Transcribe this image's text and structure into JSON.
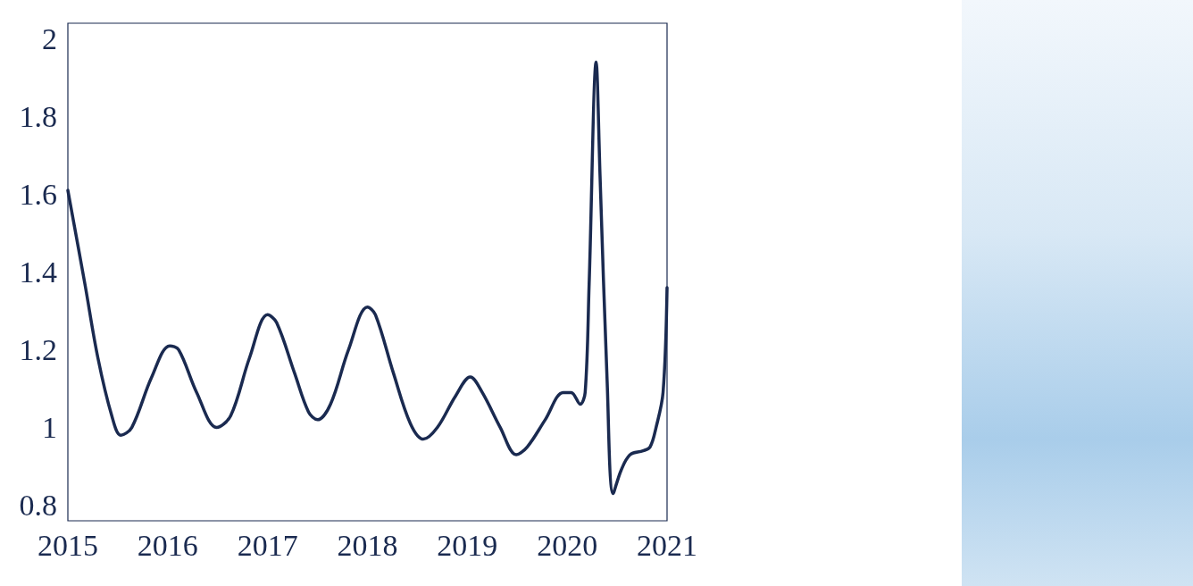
{
  "chart_data": {
    "type": "line",
    "x": [
      2015.0,
      2015.17,
      2015.3,
      2015.44,
      2015.53,
      2015.64,
      2015.84,
      2016.02,
      2016.11,
      2016.29,
      2016.49,
      2016.63,
      2016.82,
      2017.0,
      2017.09,
      2017.27,
      2017.41,
      2017.5,
      2017.63,
      2017.81,
      2018.0,
      2018.08,
      2018.26,
      2018.43,
      2018.56,
      2018.7,
      2018.88,
      2019.03,
      2019.15,
      2019.33,
      2019.49,
      2019.6,
      2019.78,
      2019.96,
      2020.04,
      2020.13,
      2020.18,
      2020.22,
      2020.29,
      2020.33,
      2020.4,
      2020.46,
      2020.54,
      2020.63,
      2020.76,
      2020.83,
      2020.89,
      2020.96,
      2021.0
    ],
    "series": [
      {
        "color": "#1a2a50",
        "values": [
          1.61,
          1.37,
          1.18,
          1.03,
          0.98,
          1.0,
          1.13,
          1.21,
          1.2,
          1.09,
          1.0,
          1.03,
          1.18,
          1.29,
          1.27,
          1.14,
          1.04,
          1.02,
          1.06,
          1.2,
          1.31,
          1.29,
          1.14,
          1.01,
          0.97,
          1.0,
          1.08,
          1.13,
          1.09,
          1.0,
          0.93,
          0.95,
          1.02,
          1.09,
          1.09,
          1.06,
          1.09,
          1.37,
          1.94,
          1.64,
          1.12,
          0.83,
          0.89,
          0.93,
          0.94,
          0.95,
          1.0,
          1.09,
          1.36
        ]
      }
    ],
    "xlim": [
      2015,
      2021
    ],
    "xticks": [
      2015,
      2016,
      2017,
      2018,
      2019,
      2020,
      2021
    ],
    "ylim": [
      0.76,
      2.04
    ],
    "yticks": [
      0.8,
      1,
      1.2,
      1.4,
      1.6,
      1.8,
      2
    ],
    "grid": false,
    "marker": "none",
    "line_style": "solid"
  }
}
